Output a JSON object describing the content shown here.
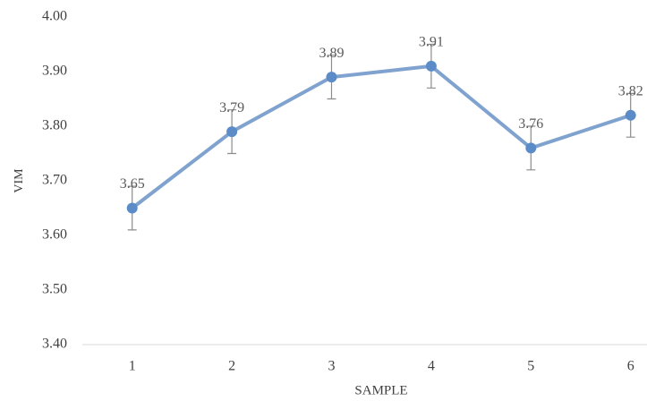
{
  "chart_data": {
    "type": "line",
    "x_label": "SAMPLE",
    "y_label": "VIM",
    "categories": [
      "1",
      "2",
      "3",
      "4",
      "5",
      "6"
    ],
    "values": [
      3.65,
      3.79,
      3.89,
      3.91,
      3.76,
      3.82
    ],
    "errors": [
      0.04,
      0.04,
      0.04,
      0.04,
      0.04,
      0.04
    ],
    "color": "#7fa2cf",
    "ylim": [
      3.4,
      4.0
    ],
    "yticks": [
      {
        "value": 3.4,
        "label": "3.40"
      },
      {
        "value": 3.5,
        "label": "3.50"
      },
      {
        "value": 3.6,
        "label": "3.60"
      },
      {
        "value": 3.7,
        "label": "3.70"
      },
      {
        "value": 3.8,
        "label": "3.80"
      },
      {
        "value": 3.9,
        "label": "3.90"
      },
      {
        "value": 4.0,
        "label": "4.00"
      }
    ],
    "grid": false
  }
}
